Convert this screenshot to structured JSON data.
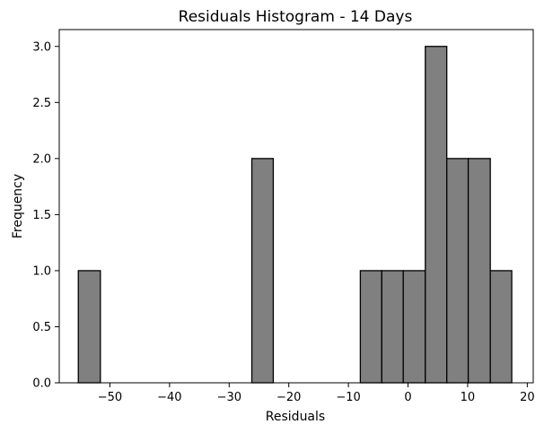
{
  "chart_data": {
    "type": "bar",
    "title": "Residuals Histogram - 14 Days",
    "xlabel": "Residuals",
    "ylabel": "Frequency",
    "xlim": [
      -58.5,
      21.0
    ],
    "ylim": [
      0,
      3.15
    ],
    "xticks": [
      -50,
      -40,
      -30,
      -20,
      -10,
      0,
      10,
      20
    ],
    "xtick_labels": [
      "−50",
      "−40",
      "−30",
      "−20",
      "−10",
      "0",
      "10",
      "20"
    ],
    "yticks": [
      0.0,
      0.5,
      1.0,
      1.5,
      2.0,
      2.5,
      3.0
    ],
    "ytick_labels": [
      "0.0",
      "0.5",
      "1.0",
      "1.5",
      "2.0",
      "2.5",
      "3.0"
    ],
    "bins": [
      {
        "start": -55.3,
        "end": -51.6,
        "count": 1
      },
      {
        "start": -51.6,
        "end": -48.0,
        "count": 0
      },
      {
        "start": -48.0,
        "end": -44.4,
        "count": 0
      },
      {
        "start": -44.4,
        "end": -40.7,
        "count": 0
      },
      {
        "start": -40.7,
        "end": -37.1,
        "count": 0
      },
      {
        "start": -37.1,
        "end": -33.5,
        "count": 0
      },
      {
        "start": -33.5,
        "end": -29.8,
        "count": 0
      },
      {
        "start": -29.8,
        "end": -26.2,
        "count": 0
      },
      {
        "start": -26.2,
        "end": -22.6,
        "count": 2
      },
      {
        "start": -22.6,
        "end": -18.9,
        "count": 0
      },
      {
        "start": -18.9,
        "end": -15.3,
        "count": 0
      },
      {
        "start": -15.3,
        "end": -11.7,
        "count": 0
      },
      {
        "start": -11.7,
        "end": -8.0,
        "count": 0
      },
      {
        "start": -8.0,
        "end": -4.4,
        "count": 1
      },
      {
        "start": -4.4,
        "end": -0.8,
        "count": 1
      },
      {
        "start": -0.8,
        "end": 2.9,
        "count": 1
      },
      {
        "start": 2.9,
        "end": 6.5,
        "count": 3
      },
      {
        "start": 6.5,
        "end": 10.1,
        "count": 2
      },
      {
        "start": 10.1,
        "end": 13.8,
        "count": 2
      },
      {
        "start": 13.8,
        "end": 17.4,
        "count": 1
      }
    ],
    "bar_color": "#808080",
    "edge_color": "#000000",
    "grid": false,
    "legend": "none"
  }
}
